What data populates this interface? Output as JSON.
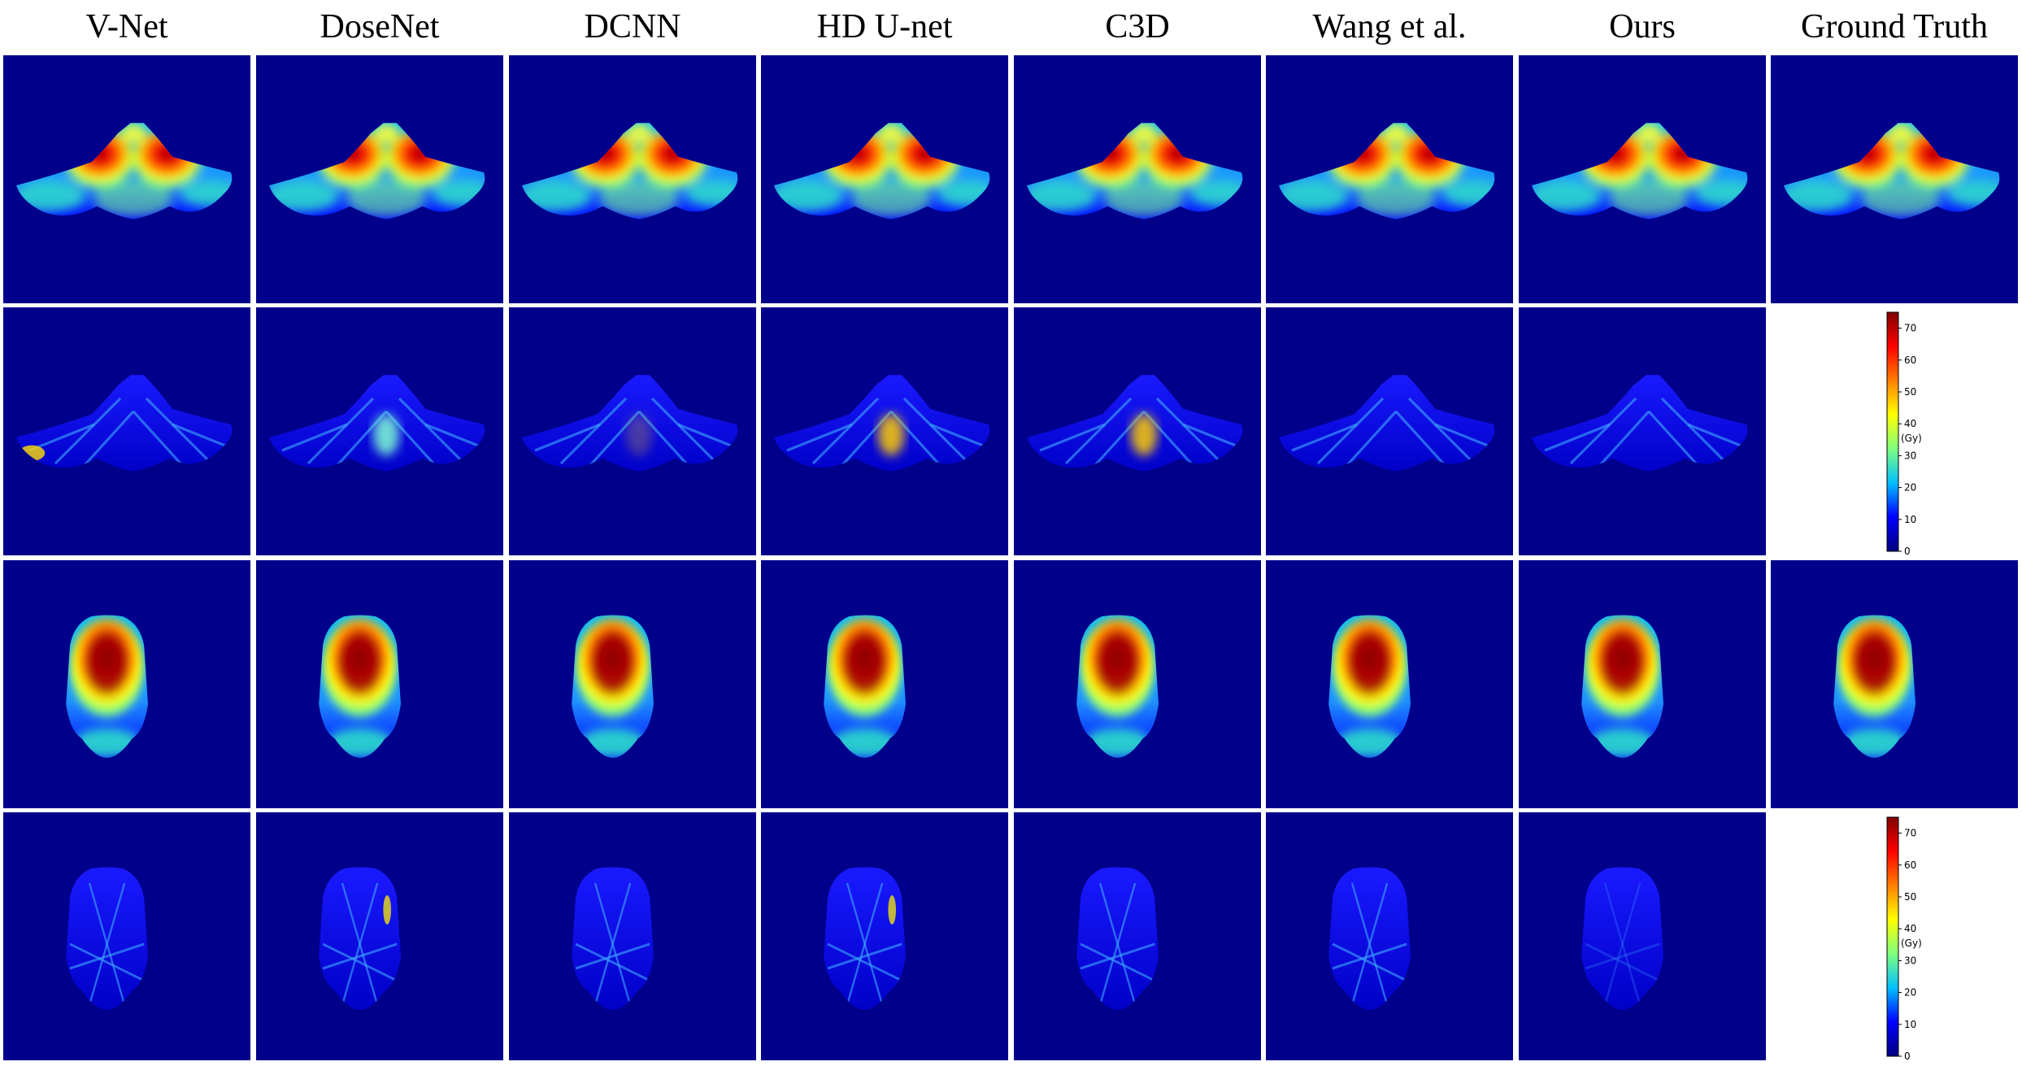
{
  "figure": {
    "columns": [
      "V-Net",
      "DoseNet",
      "DCNN",
      "HD U-net",
      "C3D",
      "Wang et al.",
      "Ours",
      "Ground Truth"
    ],
    "colorbar": {
      "unit": "(Gy)",
      "ticks": [
        "0",
        "10",
        "20",
        "30",
        "40",
        "50",
        "60",
        "70"
      ],
      "range": [
        0,
        75
      ]
    },
    "colors": {
      "background": "#00008b",
      "colormap": [
        "#00007f",
        "#0000ff",
        "#00bfff",
        "#7fff7f",
        "#ffff00",
        "#ff7f00",
        "#ff0000",
        "#7f0000"
      ]
    },
    "rows": [
      {
        "kind": "dose",
        "shape": "wide",
        "panels": 8
      },
      {
        "kind": "error",
        "shape": "wide",
        "panels": 7,
        "colorbar": true
      },
      {
        "kind": "dose",
        "shape": "head",
        "panels": 8
      },
      {
        "kind": "error",
        "shape": "head",
        "panels": 7,
        "colorbar": true
      }
    ]
  }
}
